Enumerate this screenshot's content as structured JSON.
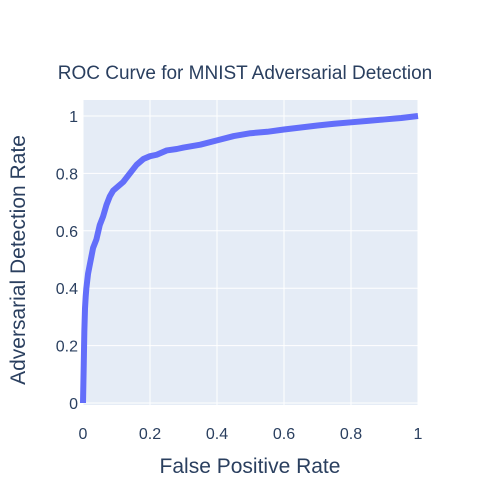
{
  "chart_data": {
    "type": "line",
    "title": "ROC Curve for MNIST Adversarial Detection",
    "xlabel": "False Positive Rate",
    "ylabel": "Adversarial Detection Rate",
    "xlim": [
      0,
      1
    ],
    "ylim": [
      0,
      1
    ],
    "grid": true,
    "x_ticks": [
      "0",
      "0.2",
      "0.4",
      "0.6",
      "0.8",
      "1"
    ],
    "y_ticks": [
      "0",
      "0.2",
      "0.4",
      "0.6",
      "0.8",
      "1"
    ],
    "series": [
      {
        "color": "#636efa",
        "x": [
          0,
          0.002,
          0.004,
          0.006,
          0.008,
          0.01,
          0.015,
          0.02,
          0.025,
          0.03,
          0.04,
          0.05,
          0.06,
          0.07,
          0.08,
          0.09,
          0.1,
          0.12,
          0.14,
          0.16,
          0.18,
          0.2,
          0.22,
          0.25,
          0.28,
          0.3,
          0.35,
          0.4,
          0.45,
          0.5,
          0.55,
          0.6,
          0.65,
          0.7,
          0.75,
          0.8,
          0.85,
          0.9,
          0.95,
          1.0
        ],
        "y": [
          0,
          0.12,
          0.25,
          0.33,
          0.37,
          0.4,
          0.45,
          0.48,
          0.51,
          0.54,
          0.57,
          0.62,
          0.65,
          0.69,
          0.72,
          0.74,
          0.75,
          0.77,
          0.8,
          0.83,
          0.85,
          0.86,
          0.865,
          0.88,
          0.885,
          0.89,
          0.9,
          0.915,
          0.93,
          0.94,
          0.945,
          0.953,
          0.96,
          0.967,
          0.973,
          0.978,
          0.983,
          0.988,
          0.993,
          1.0
        ]
      }
    ]
  }
}
